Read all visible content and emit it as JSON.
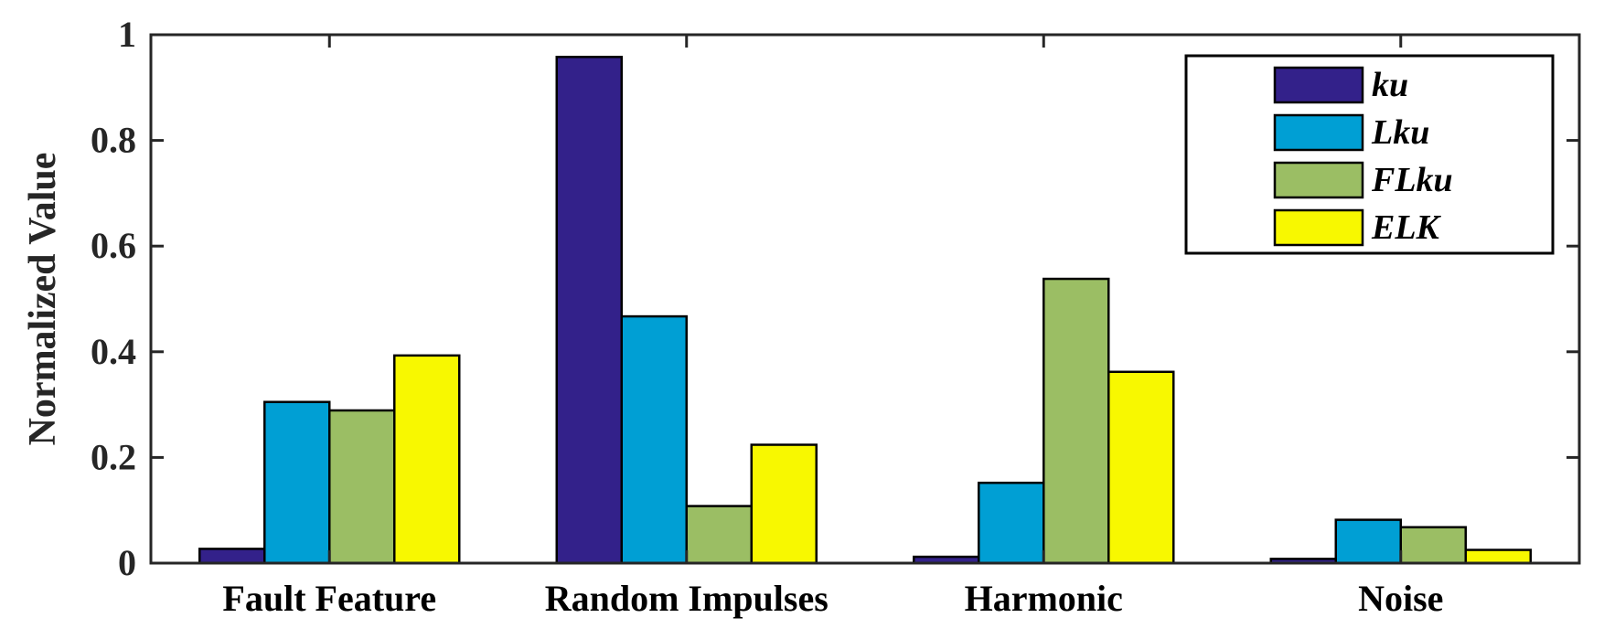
{
  "chart_data": {
    "type": "bar",
    "title": "",
    "xlabel": "",
    "ylabel": "Normalized Value",
    "ylim": [
      0,
      1
    ],
    "yticks": [
      "0",
      "0.2",
      "0.4",
      "0.6",
      "0.8",
      "1"
    ],
    "categories": [
      "Fault Feature",
      "Random Impulses",
      "Harmonic",
      "Noise"
    ],
    "series": [
      {
        "name": "ku",
        "color": "#33218a",
        "values": [
          0.027,
          0.958,
          0.012,
          0.008
        ]
      },
      {
        "name": "Lku",
        "color": "#009fd4",
        "values": [
          0.305,
          0.467,
          0.152,
          0.082
        ]
      },
      {
        "name": "FLku",
        "color": "#9bbe64",
        "values": [
          0.289,
          0.108,
          0.538,
          0.068
        ]
      },
      {
        "name": "ELK",
        "color": "#f8f800",
        "values": [
          0.393,
          0.224,
          0.362,
          0.025
        ]
      }
    ],
    "grid": false,
    "legend_position": "top-right"
  }
}
